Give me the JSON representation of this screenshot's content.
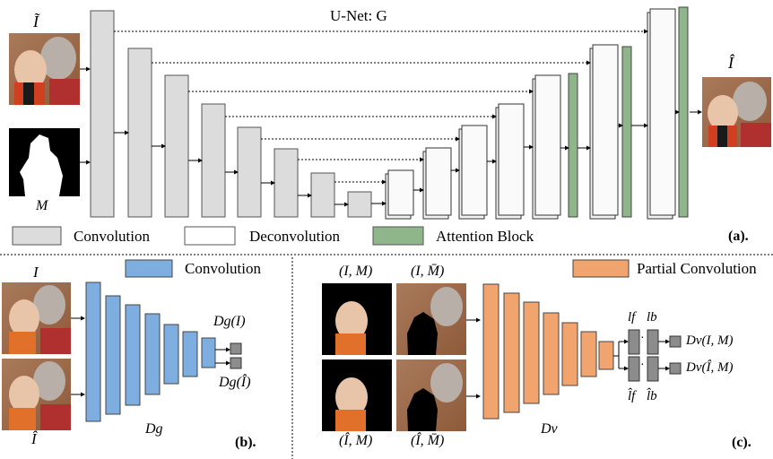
{
  "panel_a": {
    "unet_label": "U-Net: G",
    "input_image_label": "Ĩ",
    "mask_label": "M",
    "output_image_label": "Î",
    "legend": {
      "convolution": "Convolution",
      "deconvolution": "Deconvolution",
      "attention": "Attention Block"
    },
    "panel_label": "(a)."
  },
  "panel_b": {
    "legend_convolution": "Convolution",
    "input_top_label": "I",
    "input_bottom_label": "Î",
    "discriminator_label": "Dg",
    "output_top_label": "Dg(I)",
    "output_bottom_label": "Dg(Î)",
    "panel_label": "(b)."
  },
  "panel_c": {
    "legend_partial": "Partial Convolution",
    "img_top_left_label": "(I, M)",
    "img_top_right_label": "(I, M̄)",
    "img_bottom_left_label": "(Î, M)",
    "img_bottom_right_label": "(Î, M̄)",
    "discriminator_label": "Dv",
    "lf_label": "lf",
    "lb_label": "lb",
    "lf_hat_label": "l̂f",
    "lb_hat_label": "l̂b",
    "dot_top": "·",
    "dot_bottom": "·",
    "output_top_label": "Dv(I, M)",
    "output_bottom_label": "Dv(Î, M)",
    "panel_label": "(c)."
  },
  "colors": {
    "conv_gray": "#dcdcdc",
    "conv_blue": "#7eaee0",
    "partial_orange": "#f2a46f",
    "attention_green": "#8fb58a",
    "small_gray": "#8c8c8c"
  }
}
